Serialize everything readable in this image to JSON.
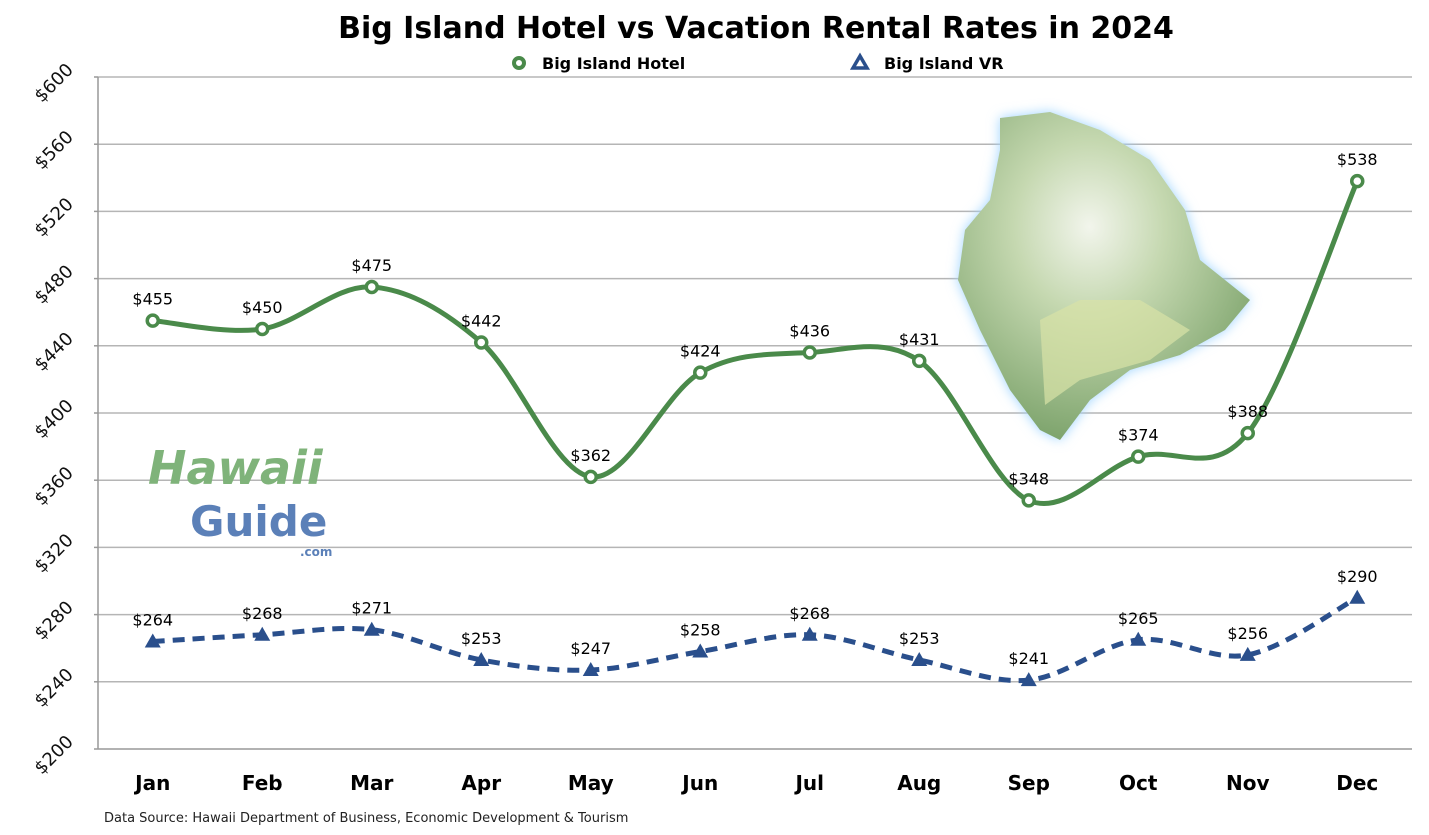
{
  "chart_data": {
    "type": "line",
    "title": "Big Island Hotel vs Vacation Rental Rates in 2024",
    "categories": [
      "Jan",
      "Feb",
      "Mar",
      "Apr",
      "May",
      "Jun",
      "Jul",
      "Aug",
      "Sep",
      "Oct",
      "Nov",
      "Dec"
    ],
    "series": [
      {
        "name": "Big Island Hotel",
        "color": "#4a8a4a",
        "marker": "circle",
        "line": "solid",
        "values": [
          455,
          450,
          475,
          442,
          362,
          424,
          436,
          431,
          348,
          374,
          388,
          538
        ],
        "labels": [
          "$455",
          "$450",
          "$475",
          "$442",
          "$362",
          "$424",
          "$436",
          "$431",
          "$348",
          "$374",
          "$388",
          "$538"
        ]
      },
      {
        "name": "Big Island VR",
        "color": "#2a4f8c",
        "marker": "triangle",
        "line": "dashed",
        "values": [
          264,
          268,
          271,
          253,
          247,
          258,
          268,
          253,
          241,
          265,
          256,
          290
        ],
        "labels": [
          "$264",
          "$268",
          "$271",
          "$253",
          "$247",
          "$258",
          "$268",
          "$253",
          "$241",
          "$265",
          "$256",
          "$290"
        ]
      }
    ],
    "ylim": [
      200,
      600
    ],
    "yticks": [
      "$200",
      "$240",
      "$280",
      "$320",
      "$360",
      "$400",
      "$440",
      "$480",
      "$520",
      "$560",
      "$600"
    ],
    "grid": true,
    "legend_position": "top",
    "xlabel": "",
    "ylabel": ""
  },
  "footer": {
    "source": "Data Source: Hawaii Department of Business, Economic Development & Tourism"
  },
  "logo": {
    "line1": "Hawaii",
    "line2": "Guide",
    "line3": ".com"
  }
}
